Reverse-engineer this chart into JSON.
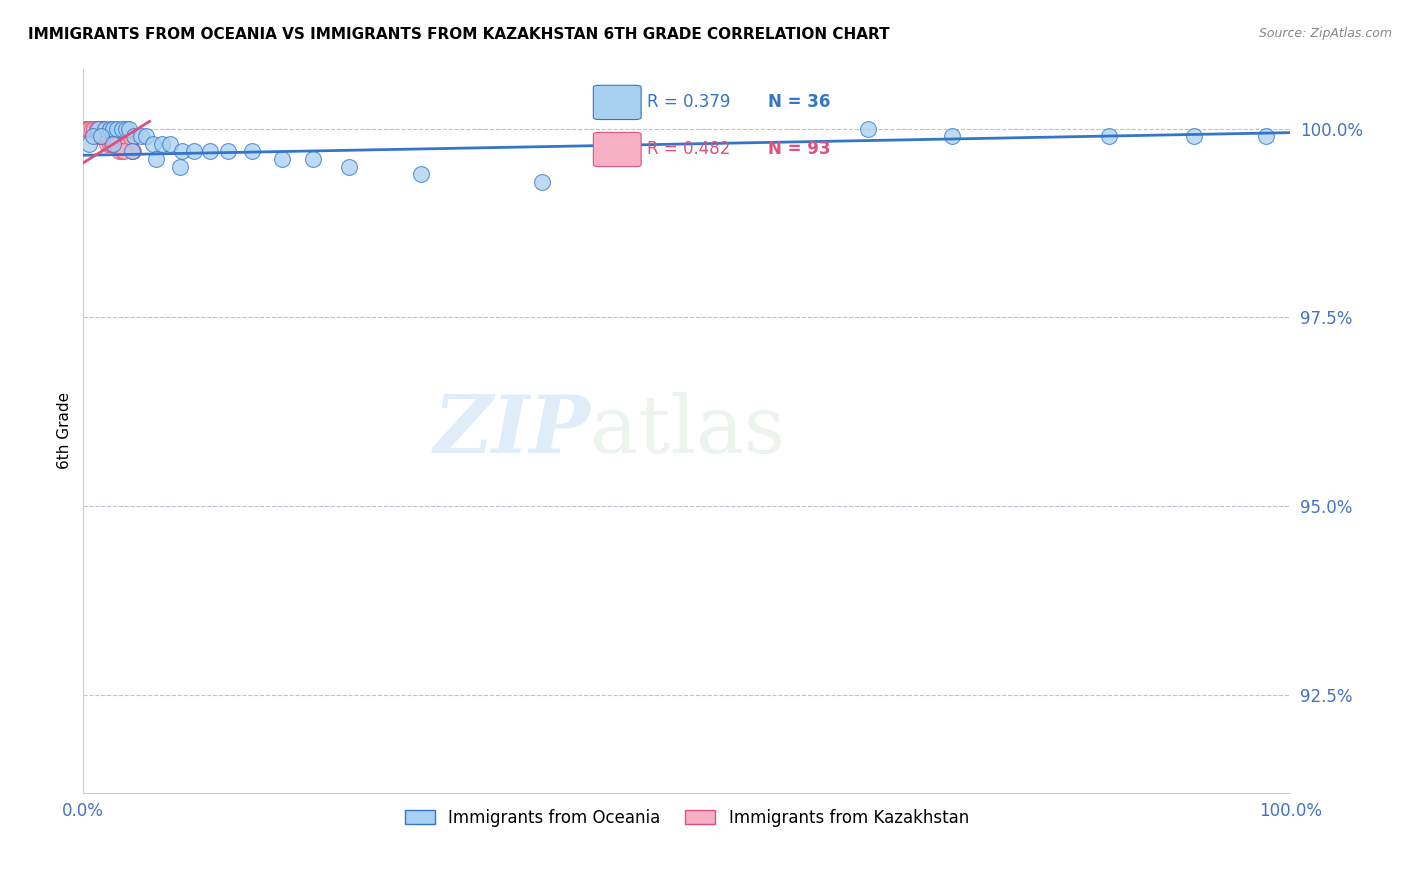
{
  "title": "IMMIGRANTS FROM OCEANIA VS IMMIGRANTS FROM KAZAKHSTAN 6TH GRADE CORRELATION CHART",
  "source": "Source: ZipAtlas.com",
  "ylabel": "6th Grade",
  "ytick_labels": [
    "100.0%",
    "97.5%",
    "95.0%",
    "92.5%"
  ],
  "ytick_values": [
    1.0,
    0.975,
    0.95,
    0.925
  ],
  "xmin": 0.0,
  "xmax": 1.0,
  "ymin": 0.912,
  "ymax": 1.008,
  "legend_blue_r": "R = 0.379",
  "legend_blue_n": "N = 36",
  "legend_pink_r": "R = 0.482",
  "legend_pink_n": "N = 93",
  "legend_label_blue": "Immigrants from Oceania",
  "legend_label_pink": "Immigrants from Kazakhstan",
  "blue_color": "#a8d0f0",
  "pink_color": "#f5b0c5",
  "trendline_blue_color": "#3575c8",
  "trendline_pink_color": "#e0507a",
  "watermark_zip": "ZIP",
  "watermark_atlas": "atlas",
  "blue_scatter_x": [
    0.005,
    0.012,
    0.018,
    0.022,
    0.025,
    0.028,
    0.032,
    0.035,
    0.038,
    0.042,
    0.048,
    0.052,
    0.058,
    0.065,
    0.072,
    0.082,
    0.092,
    0.105,
    0.12,
    0.14,
    0.165,
    0.19,
    0.22,
    0.28,
    0.38,
    0.65,
    0.72,
    0.85,
    0.92,
    0.98,
    0.008,
    0.015,
    0.025,
    0.04,
    0.06,
    0.08
  ],
  "blue_scatter_y": [
    0.998,
    1.0,
    1.0,
    1.0,
    1.0,
    1.0,
    1.0,
    1.0,
    1.0,
    0.999,
    0.999,
    0.999,
    0.998,
    0.998,
    0.998,
    0.997,
    0.997,
    0.997,
    0.997,
    0.997,
    0.996,
    0.996,
    0.995,
    0.994,
    0.993,
    1.0,
    0.999,
    0.999,
    0.999,
    0.999,
    0.999,
    0.999,
    0.998,
    0.997,
    0.996,
    0.995
  ],
  "pink_scatter_x": [
    0.002,
    0.003,
    0.004,
    0.005,
    0.006,
    0.007,
    0.008,
    0.009,
    0.01,
    0.011,
    0.012,
    0.013,
    0.014,
    0.015,
    0.016,
    0.017,
    0.018,
    0.019,
    0.02,
    0.021,
    0.022,
    0.023,
    0.024,
    0.025,
    0.026,
    0.027,
    0.028,
    0.029,
    0.03,
    0.031,
    0.032,
    0.033,
    0.034,
    0.035,
    0.036,
    0.037,
    0.038,
    0.039,
    0.04,
    0.041,
    0.003,
    0.005,
    0.007,
    0.009,
    0.011,
    0.013,
    0.015,
    0.017,
    0.019,
    0.021,
    0.023,
    0.025,
    0.004,
    0.006,
    0.008,
    0.01,
    0.012,
    0.015,
    0.018,
    0.022,
    0.026,
    0.03,
    0.035,
    0.04,
    0.005,
    0.008,
    0.012,
    0.016,
    0.02,
    0.025,
    0.003,
    0.006,
    0.009,
    0.012,
    0.015,
    0.018,
    0.003,
    0.005,
    0.007,
    0.009,
    0.011,
    0.013,
    0.015,
    0.017,
    0.019,
    0.02,
    0.022,
    0.024,
    0.026,
    0.028,
    0.03,
    0.032,
    0.034
  ],
  "pink_scatter_y": [
    1.0,
    1.0,
    1.0,
    1.0,
    1.0,
    1.0,
    1.0,
    1.0,
    1.0,
    1.0,
    1.0,
    1.0,
    1.0,
    1.0,
    1.0,
    0.999,
    0.999,
    0.999,
    0.999,
    0.999,
    0.999,
    0.999,
    0.999,
    0.999,
    0.999,
    0.999,
    0.999,
    0.999,
    0.998,
    0.998,
    0.998,
    0.998,
    0.998,
    0.998,
    0.998,
    0.998,
    0.998,
    0.998,
    0.997,
    0.997,
    1.0,
    1.0,
    1.0,
    1.0,
    1.0,
    1.0,
    0.999,
    0.999,
    0.999,
    0.999,
    0.999,
    0.999,
    1.0,
    1.0,
    1.0,
    1.0,
    1.0,
    0.999,
    0.999,
    0.999,
    0.999,
    0.998,
    0.998,
    0.997,
    1.0,
    1.0,
    0.999,
    0.999,
    0.998,
    0.998,
    1.0,
    1.0,
    1.0,
    0.999,
    0.999,
    0.999,
    1.0,
    1.0,
    1.0,
    1.0,
    1.0,
    1.0,
    0.999,
    0.999,
    0.999,
    0.999,
    0.998,
    0.998,
    0.998,
    0.998,
    0.997,
    0.997,
    0.997
  ],
  "blue_trendline_x": [
    0.0,
    1.0
  ],
  "blue_trendline_y": [
    0.9965,
    0.9995
  ],
  "pink_trendline_x": [
    0.0,
    0.055
  ],
  "pink_trendline_y": [
    0.9955,
    1.001
  ]
}
